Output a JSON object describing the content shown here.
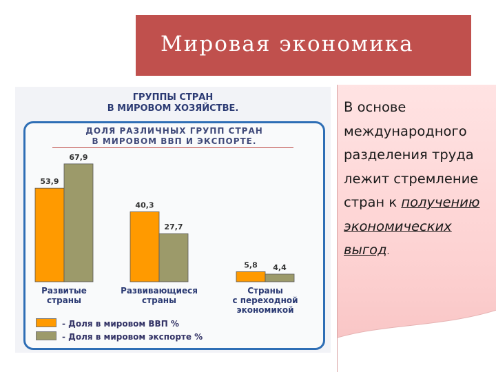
{
  "slide": {
    "title": "Мировая экономика",
    "colors": {
      "title_bg": "#c0504d",
      "panel_border": "#2e6eb5",
      "text_box_bg": "#fdd2d2"
    }
  },
  "figure": {
    "heading_line1": "ГРУППЫ СТРАН",
    "heading_line2": "В МИРОВОМ ХОЗЯЙСТВЕ.",
    "panel_heading_line1": "ДОЛЯ РАЗЛИЧНЫХ ГРУПП СТРАН",
    "panel_heading_line2": "В МИРОВОМ ВВП И ЭКСПОРТЕ.",
    "legend": [
      {
        "label": "- Доля в мировом ВВП %",
        "color": "#ff9a00"
      },
      {
        "label": "- Доля в мировом экспорте %",
        "color": "#9c9a6a"
      }
    ]
  },
  "chart_data": {
    "type": "bar",
    "categories": [
      "Развитые\nстраны",
      "Развивающиеся\nстраны",
      "Страны\nс переходной\nэкономикой"
    ],
    "series": [
      {
        "name": "- Доля в мировом ВВП %",
        "values": [
          53.9,
          40.3,
          5.8
        ],
        "labels": [
          "53,9",
          "40,3",
          "5,8"
        ],
        "color": "#ff9a00"
      },
      {
        "name": "- Доля в мировом экспорте %",
        "values": [
          67.9,
          27.7,
          4.4
        ],
        "labels": [
          "67,9",
          "27,7",
          "4,4"
        ],
        "color": "#9c9a6a"
      }
    ],
    "title": "ДОЛЯ РАЗЛИЧНЫХ ГРУПП СТРАН В МИРОВОМ ВВП И ЭКСПОРТЕ.",
    "xlabel": "",
    "ylabel": "",
    "ylim": [
      0,
      70
    ],
    "grid": false,
    "legend_position": "bottom-left"
  },
  "text_box": {
    "plain": "В основе международного разделения труда лежит стремление стран к",
    "link": "получению экономических выгод",
    "tail": "."
  }
}
